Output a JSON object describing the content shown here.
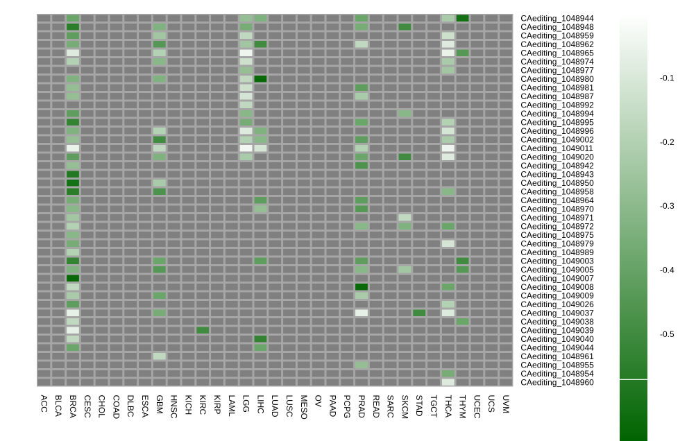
{
  "chart_data": {
    "type": "heatmap",
    "columns": [
      "ACC",
      "BLCA",
      "BRCA",
      "CESC",
      "CHOL",
      "COAD",
      "DLBC",
      "ESCA",
      "GBM",
      "HNSC",
      "KICH",
      "KIRC",
      "KIRP",
      "LAML",
      "LGG",
      "LIHC",
      "LUAD",
      "LUSC",
      "MESO",
      "OV",
      "PAAD",
      "PCPG",
      "PRAD",
      "READ",
      "SARC",
      "SKCM",
      "STAD",
      "TGCT",
      "THCA",
      "THYM",
      "UCEC",
      "UCS",
      "UVM"
    ],
    "rows": [
      "CAediting_1048944",
      "CAediting_1048948",
      "CAediting_1048959",
      "CAediting_1048962",
      "CAediting_1048965",
      "CAediting_1048974",
      "CAediting_1048977",
      "CAediting_1048980",
      "CAediting_1048981",
      "CAediting_1048987",
      "CAediting_1048992",
      "CAediting_1048994",
      "CAediting_1048995",
      "CAediting_1048996",
      "CAediting_1049002",
      "CAediting_1049011",
      "CAediting_1049020",
      "CAediting_1048942",
      "CAediting_1048943",
      "CAediting_1048950",
      "CAediting_1048958",
      "CAediting_1048964",
      "CAediting_1048970",
      "CAediting_1048971",
      "CAediting_1048972",
      "CAediting_1048975",
      "CAediting_1048979",
      "CAediting_1048989",
      "CAediting_1049003",
      "CAediting_1049005",
      "CAediting_1049007",
      "CAediting_1049008",
      "CAediting_1049009",
      "CAediting_1049026",
      "CAediting_1049037",
      "CAediting_1049038",
      "CAediting_1049039",
      "CAediting_1049040",
      "CAediting_1049044",
      "CAediting_1048961",
      "CAediting_1048955",
      "CAediting_1048954",
      "CAediting_1048960"
    ],
    "cells": [
      {
        "row": "CAediting_1048944",
        "col": "BRCA",
        "value": -0.35
      },
      {
        "row": "CAediting_1048944",
        "col": "LGG",
        "value": -0.25
      },
      {
        "row": "CAediting_1048944",
        "col": "LIHC",
        "value": -0.3
      },
      {
        "row": "CAediting_1048944",
        "col": "PRAD",
        "value": -0.35
      },
      {
        "row": "CAediting_1048944",
        "col": "THCA",
        "value": -0.2
      },
      {
        "row": "CAediting_1048944",
        "col": "THYM",
        "value": -0.55
      },
      {
        "row": "CAediting_1048948",
        "col": "BRCA",
        "value": -0.5
      },
      {
        "row": "CAediting_1048948",
        "col": "GBM",
        "value": -0.3
      },
      {
        "row": "CAediting_1048948",
        "col": "LGG",
        "value": -0.32
      },
      {
        "row": "CAediting_1048948",
        "col": "PRAD",
        "value": -0.32
      },
      {
        "row": "CAediting_1048948",
        "col": "SKCM",
        "value": -0.45
      },
      {
        "row": "CAediting_1048959",
        "col": "BRCA",
        "value": -0.38
      },
      {
        "row": "CAediting_1048959",
        "col": "GBM",
        "value": -0.22
      },
      {
        "row": "CAediting_1048959",
        "col": "LGG",
        "value": -0.15
      },
      {
        "row": "CAediting_1048959",
        "col": "THCA",
        "value": -0.12
      },
      {
        "row": "CAediting_1048962",
        "col": "BRCA",
        "value": -0.32
      },
      {
        "row": "CAediting_1048962",
        "col": "GBM",
        "value": -0.4
      },
      {
        "row": "CAediting_1048962",
        "col": "LGG",
        "value": -0.22
      },
      {
        "row": "CAediting_1048962",
        "col": "LIHC",
        "value": -0.45
      },
      {
        "row": "CAediting_1048962",
        "col": "PRAD",
        "value": -0.15
      },
      {
        "row": "CAediting_1048962",
        "col": "THCA",
        "value": -0.08
      },
      {
        "row": "CAediting_1048965",
        "col": "BRCA",
        "value": -0.08
      },
      {
        "row": "CAediting_1048965",
        "col": "GBM",
        "value": -0.18
      },
      {
        "row": "CAediting_1048965",
        "col": "LGG",
        "value": -0.04
      },
      {
        "row": "CAediting_1048965",
        "col": "THCA",
        "value": -0.05
      },
      {
        "row": "CAediting_1048965",
        "col": "THYM",
        "value": -0.4
      },
      {
        "row": "CAediting_1048974",
        "col": "BRCA",
        "value": -0.18
      },
      {
        "row": "CAediting_1048974",
        "col": "GBM",
        "value": -0.28
      },
      {
        "row": "CAediting_1048974",
        "col": "LGG",
        "value": -0.12
      },
      {
        "row": "CAediting_1048974",
        "col": "THCA",
        "value": -0.2
      },
      {
        "row": "CAediting_1048977",
        "col": "LGG",
        "value": -0.25
      },
      {
        "row": "CAediting_1048977",
        "col": "THCA",
        "value": -0.22
      },
      {
        "row": "CAediting_1048980",
        "col": "BRCA",
        "value": -0.3
      },
      {
        "row": "CAediting_1048980",
        "col": "GBM",
        "value": -0.3
      },
      {
        "row": "CAediting_1048980",
        "col": "LGG",
        "value": -0.15
      },
      {
        "row": "CAediting_1048980",
        "col": "LIHC",
        "value": -0.58
      },
      {
        "row": "CAediting_1048981",
        "col": "BRCA",
        "value": -0.25
      },
      {
        "row": "CAediting_1048981",
        "col": "LGG",
        "value": -0.12
      },
      {
        "row": "CAediting_1048981",
        "col": "PRAD",
        "value": -0.38
      },
      {
        "row": "CAediting_1048987",
        "col": "BRCA",
        "value": -0.25
      },
      {
        "row": "CAediting_1048987",
        "col": "LGG",
        "value": -0.1
      },
      {
        "row": "CAediting_1048987",
        "col": "PRAD",
        "value": -0.2
      },
      {
        "row": "CAediting_1048992",
        "col": "LGG",
        "value": -0.15
      },
      {
        "row": "CAediting_1048994",
        "col": "BRCA",
        "value": -0.38
      },
      {
        "row": "CAediting_1048994",
        "col": "LGG",
        "value": -0.28
      },
      {
        "row": "CAediting_1048994",
        "col": "SKCM",
        "value": -0.28
      },
      {
        "row": "CAediting_1048995",
        "col": "BRCA",
        "value": -0.48
      },
      {
        "row": "CAediting_1048995",
        "col": "LGG",
        "value": -0.32
      },
      {
        "row": "CAediting_1048995",
        "col": "PRAD",
        "value": -0.35
      },
      {
        "row": "CAediting_1048995",
        "col": "THCA",
        "value": -0.18
      },
      {
        "row": "CAediting_1048996",
        "col": "BRCA",
        "value": -0.3
      },
      {
        "row": "CAediting_1048996",
        "col": "GBM",
        "value": -0.18
      },
      {
        "row": "CAediting_1048996",
        "col": "LGG",
        "value": -0.08
      },
      {
        "row": "CAediting_1048996",
        "col": "LIHC",
        "value": -0.3
      },
      {
        "row": "CAediting_1048996",
        "col": "THCA",
        "value": -0.1
      },
      {
        "row": "CAediting_1049002",
        "col": "BRCA",
        "value": -0.25
      },
      {
        "row": "CAediting_1049002",
        "col": "GBM",
        "value": -0.45
      },
      {
        "row": "CAediting_1049002",
        "col": "LGG",
        "value": -0.18
      },
      {
        "row": "CAediting_1049002",
        "col": "LIHC",
        "value": -0.28
      },
      {
        "row": "CAediting_1049002",
        "col": "PRAD",
        "value": -0.38
      },
      {
        "row": "CAediting_1049002",
        "col": "THCA",
        "value": -0.2
      },
      {
        "row": "CAediting_1049011",
        "col": "BRCA",
        "value": -0.05
      },
      {
        "row": "CAediting_1049011",
        "col": "GBM",
        "value": -0.15
      },
      {
        "row": "CAediting_1049011",
        "col": "LGG",
        "value": -0.03
      },
      {
        "row": "CAediting_1049011",
        "col": "LIHC",
        "value": -0.1
      },
      {
        "row": "CAediting_1049011",
        "col": "PRAD",
        "value": -0.18
      },
      {
        "row": "CAediting_1049011",
        "col": "THCA",
        "value": -0.04
      },
      {
        "row": "CAediting_1049020",
        "col": "BRCA",
        "value": -0.38
      },
      {
        "row": "CAediting_1049020",
        "col": "GBM",
        "value": -0.3
      },
      {
        "row": "CAediting_1049020",
        "col": "LGG",
        "value": -0.2
      },
      {
        "row": "CAediting_1049020",
        "col": "PRAD",
        "value": -0.35
      },
      {
        "row": "CAediting_1049020",
        "col": "SKCM",
        "value": -0.45
      },
      {
        "row": "CAediting_1049020",
        "col": "THCA",
        "value": -0.08
      },
      {
        "row": "CAediting_1048942",
        "col": "BRCA",
        "value": -0.25
      },
      {
        "row": "CAediting_1048942",
        "col": "PRAD",
        "value": -0.42
      },
      {
        "row": "CAediting_1048943",
        "col": "BRCA",
        "value": -0.52
      },
      {
        "row": "CAediting_1048950",
        "col": "BRCA",
        "value": -0.55
      },
      {
        "row": "CAediting_1048950",
        "col": "GBM",
        "value": -0.2
      },
      {
        "row": "CAediting_1048958",
        "col": "BRCA",
        "value": -0.5
      },
      {
        "row": "CAediting_1048958",
        "col": "GBM",
        "value": -0.42
      },
      {
        "row": "CAediting_1048958",
        "col": "THCA",
        "value": -0.28
      },
      {
        "row": "CAediting_1048964",
        "col": "BRCA",
        "value": -0.32
      },
      {
        "row": "CAediting_1048964",
        "col": "LIHC",
        "value": -0.38
      },
      {
        "row": "CAediting_1048964",
        "col": "PRAD",
        "value": -0.38
      },
      {
        "row": "CAediting_1048970",
        "col": "BRCA",
        "value": -0.28
      },
      {
        "row": "CAediting_1048970",
        "col": "LIHC",
        "value": -0.25
      },
      {
        "row": "CAediting_1048970",
        "col": "PRAD",
        "value": -0.4
      },
      {
        "row": "CAediting_1048971",
        "col": "BRCA",
        "value": -0.22
      },
      {
        "row": "CAediting_1048971",
        "col": "SKCM",
        "value": -0.15
      },
      {
        "row": "CAediting_1048972",
        "col": "BRCA",
        "value": -0.18
      },
      {
        "row": "CAediting_1048972",
        "col": "PRAD",
        "value": -0.28
      },
      {
        "row": "CAediting_1048972",
        "col": "SKCM",
        "value": -0.3
      },
      {
        "row": "CAediting_1048972",
        "col": "THCA",
        "value": -0.35
      },
      {
        "row": "CAediting_1048975",
        "col": "BRCA",
        "value": -0.28
      },
      {
        "row": "CAediting_1048979",
        "col": "BRCA",
        "value": -0.32
      },
      {
        "row": "CAediting_1048979",
        "col": "THCA",
        "value": -0.1
      },
      {
        "row": "CAediting_1048989",
        "col": "BRCA",
        "value": -0.18
      },
      {
        "row": "CAediting_1049003",
        "col": "BRCA",
        "value": -0.48
      },
      {
        "row": "CAediting_1049003",
        "col": "GBM",
        "value": -0.35
      },
      {
        "row": "CAediting_1049003",
        "col": "LIHC",
        "value": -0.38
      },
      {
        "row": "CAediting_1049003",
        "col": "PRAD",
        "value": -0.38
      },
      {
        "row": "CAediting_1049003",
        "col": "THYM",
        "value": -0.45
      },
      {
        "row": "CAediting_1049005",
        "col": "BRCA",
        "value": -0.3
      },
      {
        "row": "CAediting_1049005",
        "col": "GBM",
        "value": -0.4
      },
      {
        "row": "CAediting_1049005",
        "col": "PRAD",
        "value": -0.28
      },
      {
        "row": "CAediting_1049005",
        "col": "SKCM",
        "value": -0.22
      },
      {
        "row": "CAediting_1049005",
        "col": "THYM",
        "value": -0.4
      },
      {
        "row": "CAediting_1049007",
        "col": "BRCA",
        "value": -0.58
      },
      {
        "row": "CAediting_1049008",
        "col": "BRCA",
        "value": -0.15
      },
      {
        "row": "CAediting_1049008",
        "col": "PRAD",
        "value": -0.58
      },
      {
        "row": "CAediting_1049008",
        "col": "THCA",
        "value": -0.35
      },
      {
        "row": "CAediting_1049009",
        "col": "BRCA",
        "value": -0.2
      },
      {
        "row": "CAediting_1049009",
        "col": "GBM",
        "value": -0.35
      },
      {
        "row": "CAediting_1049009",
        "col": "PRAD",
        "value": -0.2
      },
      {
        "row": "CAediting_1049026",
        "col": "BRCA",
        "value": -0.38
      },
      {
        "row": "CAediting_1049026",
        "col": "THCA",
        "value": -0.18
      },
      {
        "row": "CAediting_1049037",
        "col": "BRCA",
        "value": -0.06
      },
      {
        "row": "CAediting_1049037",
        "col": "GBM",
        "value": -0.32
      },
      {
        "row": "CAediting_1049037",
        "col": "PRAD",
        "value": -0.06
      },
      {
        "row": "CAediting_1049037",
        "col": "STAD",
        "value": -0.45
      },
      {
        "row": "CAediting_1049037",
        "col": "THCA",
        "value": -0.08
      },
      {
        "row": "CAediting_1049038",
        "col": "BRCA",
        "value": -0.15
      },
      {
        "row": "CAediting_1049038",
        "col": "THYM",
        "value": -0.35
      },
      {
        "row": "CAediting_1049039",
        "col": "BRCA",
        "value": -0.06
      },
      {
        "row": "CAediting_1049039",
        "col": "KIRC",
        "value": -0.45
      },
      {
        "row": "CAediting_1049040",
        "col": "BRCA",
        "value": -0.15
      },
      {
        "row": "CAediting_1049040",
        "col": "LIHC",
        "value": -0.48
      },
      {
        "row": "CAediting_1049044",
        "col": "BRCA",
        "value": -0.35
      },
      {
        "row": "CAediting_1049044",
        "col": "LIHC",
        "value": -0.35
      },
      {
        "row": "CAediting_1048961",
        "col": "GBM",
        "value": -0.15
      },
      {
        "row": "CAediting_1048955",
        "col": "PRAD",
        "value": -0.25
      },
      {
        "row": "CAediting_1048954",
        "col": "THCA",
        "value": -0.32
      },
      {
        "row": "CAediting_1048960",
        "col": "THCA",
        "value": -0.08
      }
    ],
    "na_color": "#808080",
    "grid_color": "#a6a6a6",
    "colorscale": {
      "min": -0.6,
      "max": 0.0,
      "low_color": "#006400",
      "high_color": "#ffffff"
    },
    "colorbar_ticks": [
      -0.1,
      -0.2,
      -0.3,
      -0.4,
      -0.5
    ],
    "colorbar_tick_labels": [
      "-0.1",
      "-0.2",
      "-0.3",
      "-0.4",
      "-0.5"
    ]
  }
}
